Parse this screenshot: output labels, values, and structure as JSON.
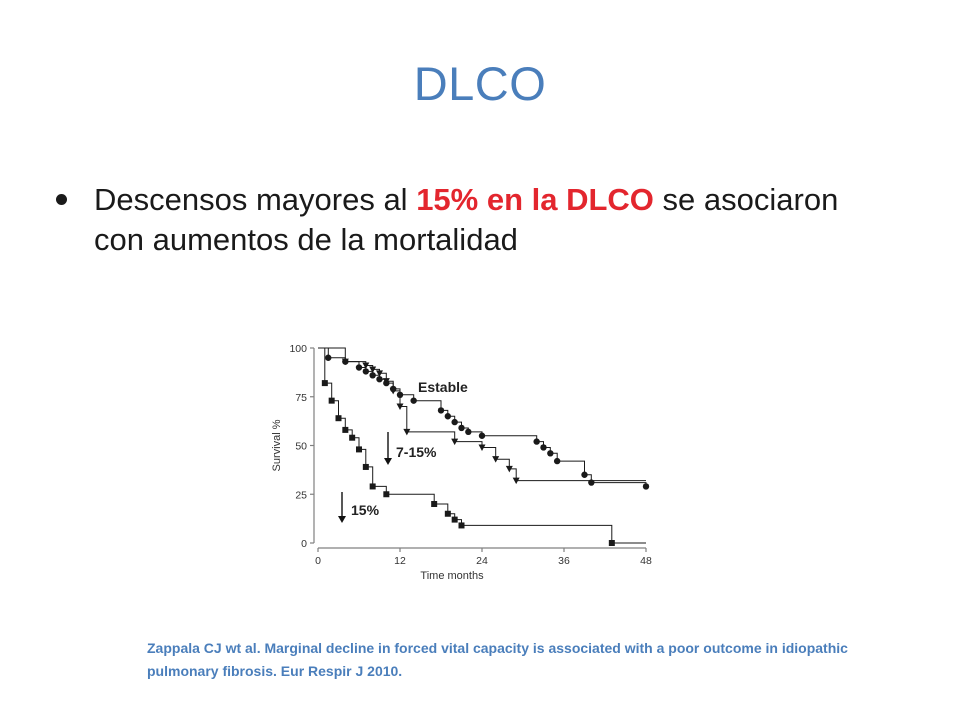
{
  "slide": {
    "title": "DLCO",
    "bullet": {
      "part1": "Descensos mayores al ",
      "highlight": "15% en la DLCO",
      "part2": " se asociaron con aumentos de la mortalidad"
    },
    "citation": "Zappala CJ wt al. Marginal decline in forced vital capacity is associated with a poor outcome in idiopathic pulmonary fibrosis. Eur Respir J 2010."
  },
  "colors": {
    "title": "#4a7ebb",
    "highlight": "#e3262e",
    "citation": "#4a7ebb",
    "series": "#1a1a1a",
    "axis": "#808080"
  },
  "chart_data": {
    "type": "line",
    "subtype": "kaplan-meier step",
    "xlabel": "Time months",
    "ylabel": "Survival %",
    "xlim": [
      0,
      48
    ],
    "ylim": [
      0,
      100
    ],
    "xticks": [
      0,
      12,
      24,
      36,
      48
    ],
    "yticks": [
      0,
      25,
      50,
      75,
      100
    ],
    "grid": false,
    "series": [
      {
        "name": "Estable",
        "marker": "circle",
        "points": [
          [
            0,
            100
          ],
          [
            1.5,
            100
          ],
          [
            1.5,
            95
          ],
          [
            4,
            95
          ],
          [
            4,
            93
          ],
          [
            6,
            93
          ],
          [
            6,
            90
          ],
          [
            7,
            90
          ],
          [
            7,
            88
          ],
          [
            8,
            88
          ],
          [
            8,
            86
          ],
          [
            9,
            86
          ],
          [
            9,
            84
          ],
          [
            10,
            84
          ],
          [
            10,
            82
          ],
          [
            11,
            82
          ],
          [
            11,
            79
          ],
          [
            12,
            79
          ],
          [
            12,
            76
          ],
          [
            14,
            76
          ],
          [
            14,
            73
          ],
          [
            18,
            73
          ],
          [
            18,
            68
          ],
          [
            19,
            68
          ],
          [
            19,
            65
          ],
          [
            20,
            65
          ],
          [
            20,
            62
          ],
          [
            21,
            62
          ],
          [
            21,
            59
          ],
          [
            22,
            59
          ],
          [
            22,
            57
          ],
          [
            24,
            57
          ],
          [
            24,
            55
          ],
          [
            32,
            55
          ],
          [
            32,
            52
          ],
          [
            33,
            52
          ],
          [
            33,
            49
          ],
          [
            34,
            49
          ],
          [
            34,
            46
          ],
          [
            35,
            46
          ],
          [
            35,
            42
          ],
          [
            39,
            42
          ],
          [
            39,
            35
          ],
          [
            40,
            35
          ],
          [
            40,
            31
          ],
          [
            48,
            31
          ],
          [
            48,
            29
          ]
        ]
      },
      {
        "name": "7-15%",
        "marker": "triangle-down",
        "points": [
          [
            0,
            100
          ],
          [
            4,
            100
          ],
          [
            4,
            93
          ],
          [
            7,
            93
          ],
          [
            7,
            91
          ],
          [
            8,
            91
          ],
          [
            8,
            89
          ],
          [
            9,
            89
          ],
          [
            9,
            87
          ],
          [
            10,
            87
          ],
          [
            10,
            83
          ],
          [
            11,
            83
          ],
          [
            11,
            78
          ],
          [
            12,
            78
          ],
          [
            12,
            70
          ],
          [
            13,
            70
          ],
          [
            13,
            57
          ],
          [
            20,
            57
          ],
          [
            20,
            52
          ],
          [
            24,
            52
          ],
          [
            24,
            49
          ],
          [
            26,
            49
          ],
          [
            26,
            43
          ],
          [
            28,
            43
          ],
          [
            28,
            38
          ],
          [
            29,
            38
          ],
          [
            29,
            32
          ],
          [
            48,
            32
          ]
        ]
      },
      {
        "name": "15%",
        "marker": "square",
        "points": [
          [
            0,
            100
          ],
          [
            1,
            100
          ],
          [
            1,
            82
          ],
          [
            2,
            82
          ],
          [
            2,
            73
          ],
          [
            3,
            73
          ],
          [
            3,
            64
          ],
          [
            4,
            64
          ],
          [
            4,
            58
          ],
          [
            5,
            58
          ],
          [
            5,
            54
          ],
          [
            6,
            54
          ],
          [
            6,
            48
          ],
          [
            7,
            48
          ],
          [
            7,
            39
          ],
          [
            8,
            39
          ],
          [
            8,
            29
          ],
          [
            10,
            29
          ],
          [
            10,
            25
          ],
          [
            17,
            25
          ],
          [
            17,
            20
          ],
          [
            19,
            20
          ],
          [
            19,
            15
          ],
          [
            20,
            15
          ],
          [
            20,
            12
          ],
          [
            21,
            12
          ],
          [
            21,
            9
          ],
          [
            43,
            9
          ],
          [
            43,
            0
          ],
          [
            48,
            0
          ]
        ]
      }
    ],
    "annotations": [
      "Estable",
      "7-15%",
      "15%"
    ]
  }
}
